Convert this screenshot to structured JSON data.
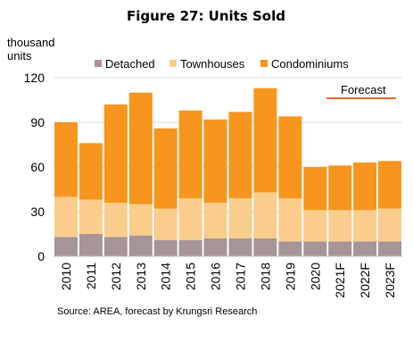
{
  "chart_data": {
    "type": "bar",
    "stacked": true,
    "title": "Figure 27: Units Sold",
    "ylabel": "thousand units",
    "ylim": [
      0,
      120
    ],
    "yticks": [
      0,
      30,
      60,
      90,
      120
    ],
    "categories": [
      "2010",
      "2011",
      "2012",
      "2013",
      "2014",
      "2015",
      "2016",
      "2017",
      "2018",
      "2019",
      "2020",
      "2021F",
      "2022F",
      "2023F"
    ],
    "series": [
      {
        "name": "Detached",
        "color": "#A69496",
        "values": [
          13,
          15,
          13,
          14,
          11,
          11,
          12,
          12,
          12,
          10,
          10,
          10,
          10,
          10
        ]
      },
      {
        "name": "Townhouses",
        "color": "#FACD8C",
        "values": [
          27,
          23,
          23,
          21,
          21,
          28,
          24,
          27,
          31,
          29,
          21,
          21,
          21,
          22
        ]
      },
      {
        "name": "Condominiums",
        "color": "#F7951E",
        "values": [
          50,
          38,
          66,
          75,
          54,
          59,
          56,
          58,
          70,
          55,
          29,
          30,
          32,
          32
        ]
      }
    ],
    "forecast_label": "Forecast",
    "forecast_line_color": "#E8682A",
    "source": "Source: AREA, forecast by Krungsri Research"
  }
}
